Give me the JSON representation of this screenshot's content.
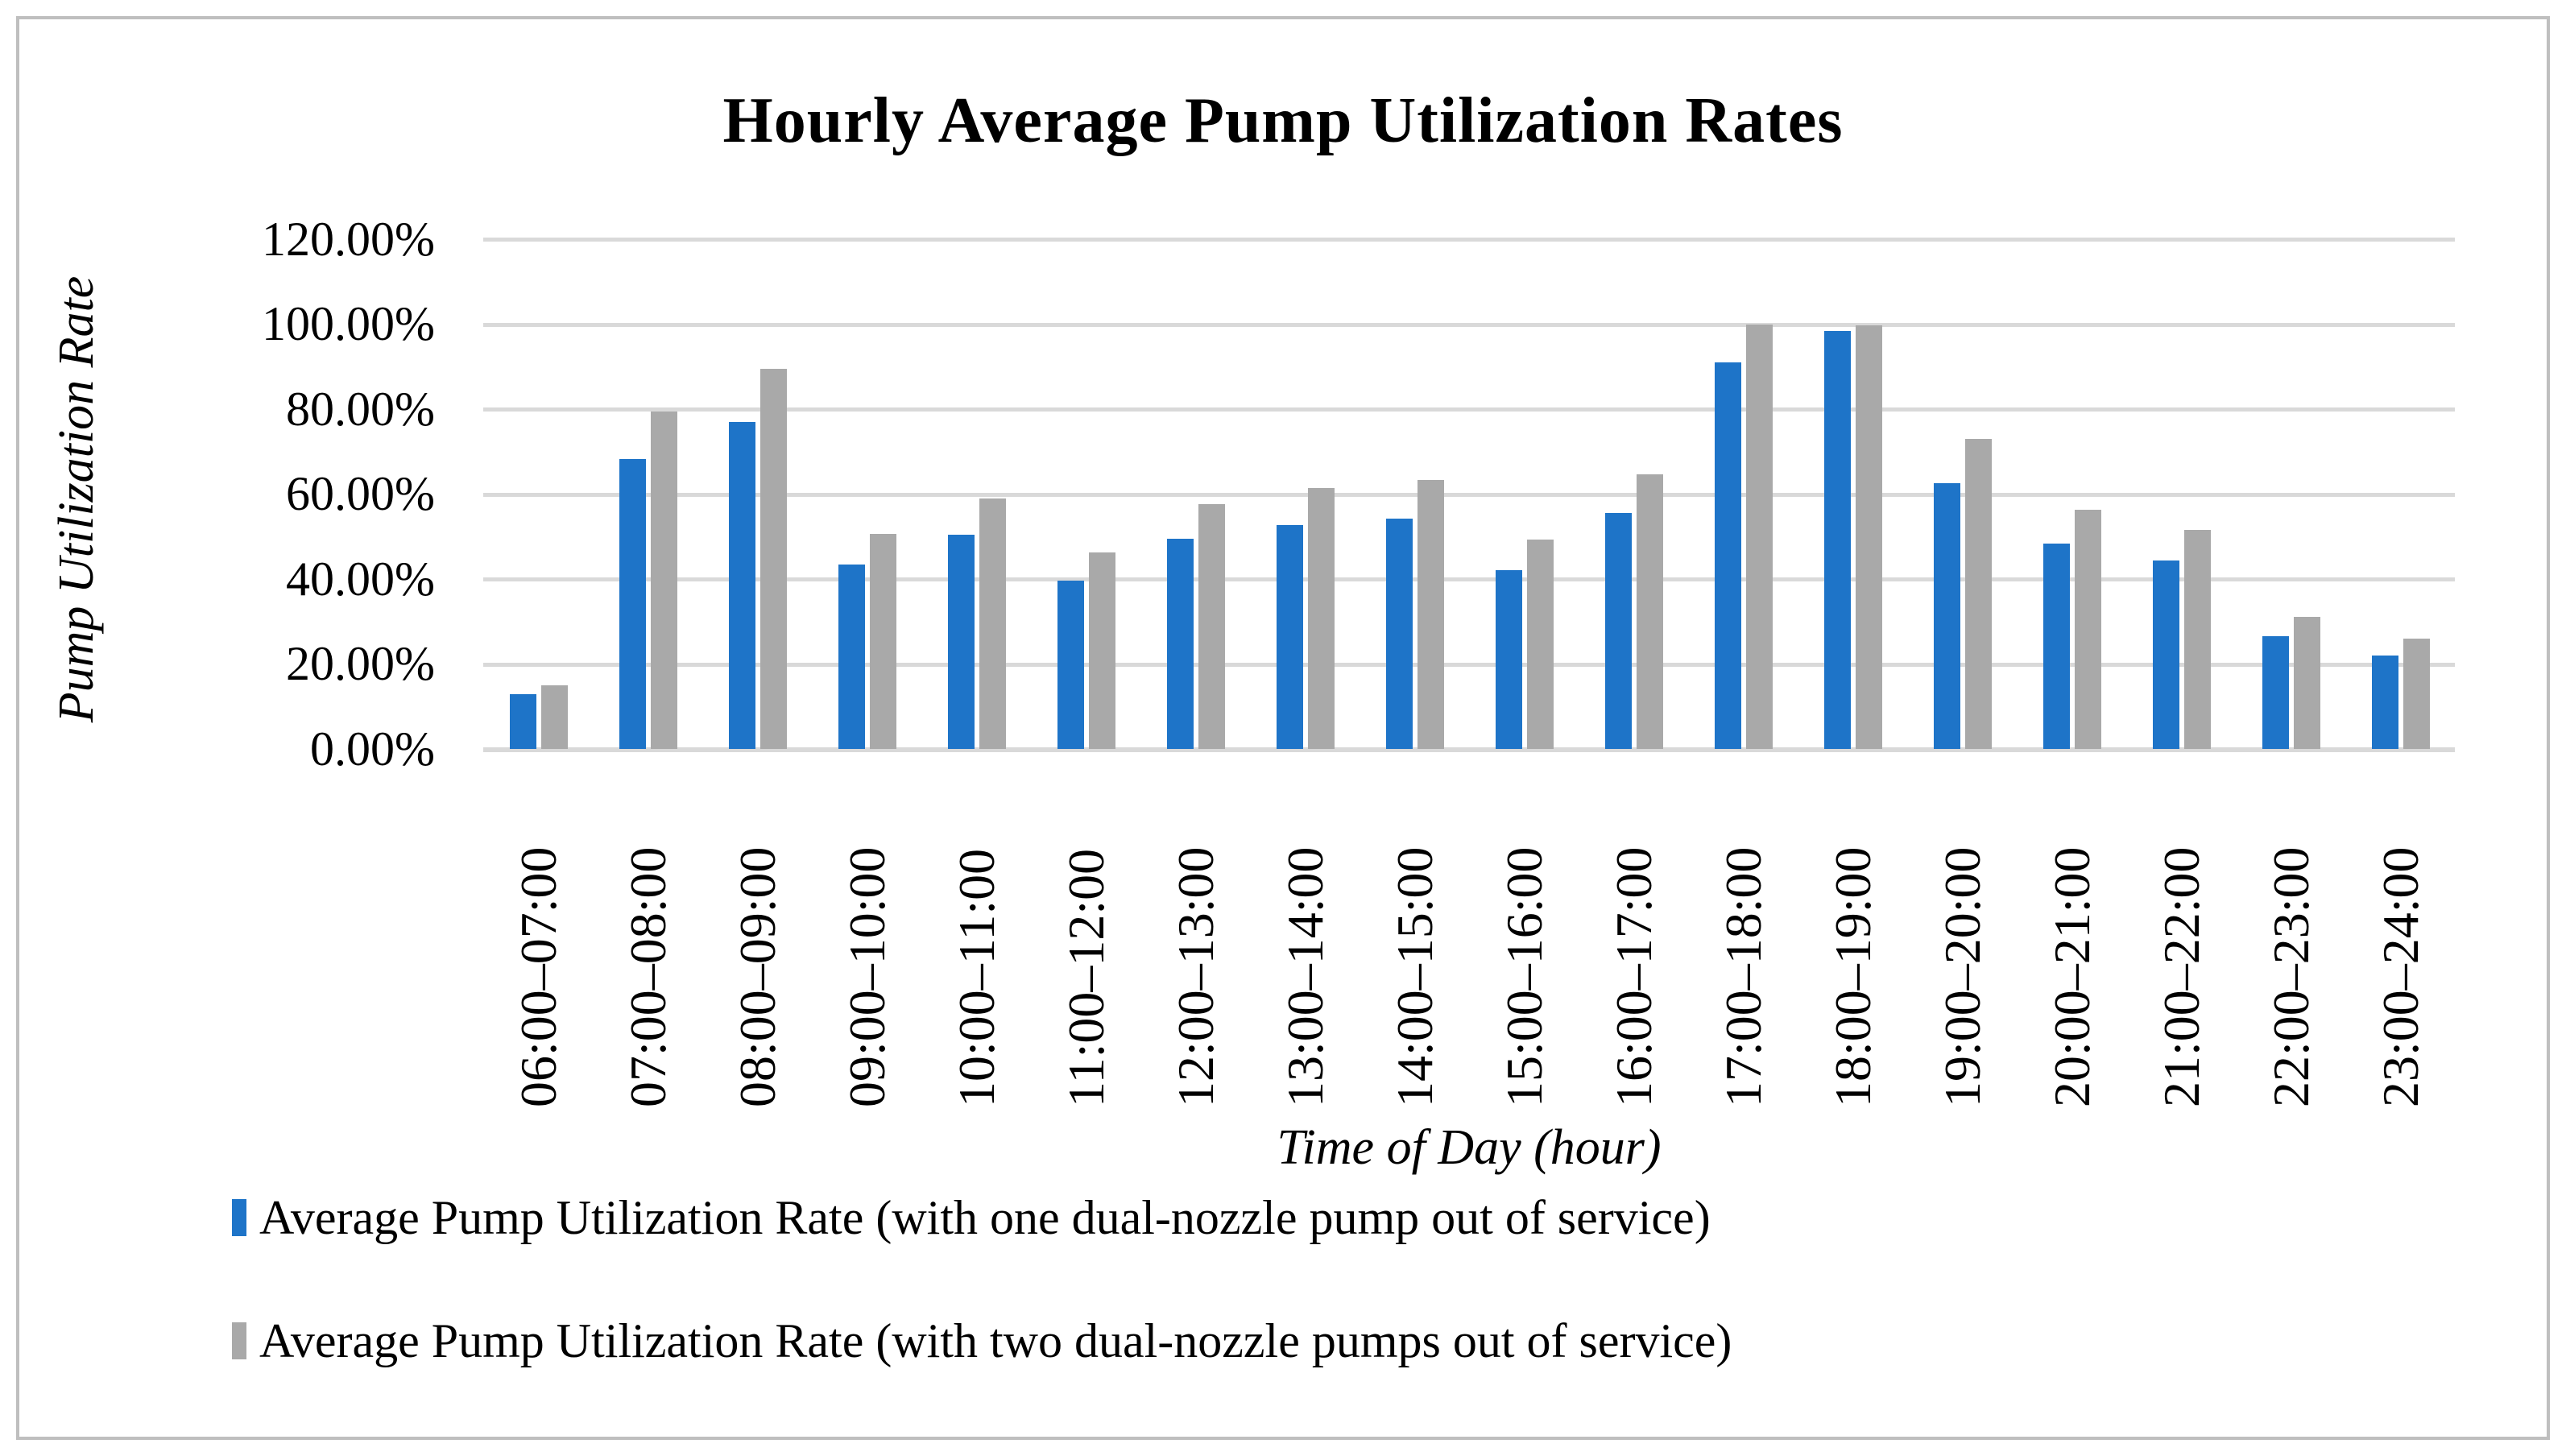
{
  "frame": {
    "border_color": "#bfbfbf"
  },
  "title": "Hourly Average Pump Utilization Rates",
  "y_axis": {
    "title": "Pump Utilization Rate",
    "tick_labels": [
      "120.00%",
      "100.00%",
      "80.00%",
      "60.00%",
      "40.00%",
      "20.00%",
      "0.00%"
    ],
    "max_pct": 120,
    "step_pct": 20
  },
  "x_axis": {
    "title": "Time of Day (hour)"
  },
  "legend": {
    "items": [
      {
        "label": "Average Pump Utilization Rate (with one dual-nozzle pump out of service)",
        "color": "#1e74c8"
      },
      {
        "label": "Average Pump Utilization Rate (with two dual-nozzle pumps out of service)",
        "color": "#a9a9a9"
      }
    ]
  },
  "colors": {
    "series_one_out": "#1e74c8",
    "series_two_out": "#a9a9a9",
    "gridline": "#d9d9d9",
    "frame_border": "#bfbfbf"
  },
  "chart_data": {
    "type": "bar",
    "title": "Hourly Average Pump Utilization Rates",
    "xlabel": "Time of Day (hour)",
    "ylabel": "Pump Utilization Rate",
    "ylim": [
      0,
      120
    ],
    "y_tick_step": 20,
    "y_tick_format": "0.00%",
    "grid": true,
    "legend_position": "bottom-left",
    "categories": [
      "06:00–07:00",
      "07:00–08:00",
      "08:00–09:00",
      "09:00–10:00",
      "10:00–11:00",
      "11:00–12:00",
      "12:00–13:00",
      "13:00–14:00",
      "14:00–15:00",
      "15:00–16:00",
      "16:00–17:00",
      "17:00–18:00",
      "18:00–19:00",
      "19:00–20:00",
      "20:00–21:00",
      "21:00–22:00",
      "22:00–23:00",
      "23:00–24:00"
    ],
    "series": [
      {
        "name": "Average Pump Utilization Rate (with one dual-nozzle pump out of service)",
        "color": "#1e74c8",
        "values": [
          12.8,
          68.2,
          77.0,
          43.4,
          50.4,
          39.6,
          49.4,
          52.7,
          54.2,
          42.1,
          55.5,
          91.0,
          98.4,
          62.6,
          48.3,
          44.3,
          26.6,
          21.9
        ]
      },
      {
        "name": "Average Pump Utilization Rate (with two dual-nozzle pumps out of service)",
        "color": "#a9a9a9",
        "values": [
          14.9,
          79.5,
          89.5,
          50.6,
          59.0,
          46.2,
          57.6,
          61.5,
          63.4,
          49.2,
          64.6,
          100.0,
          99.8,
          73.0,
          56.4,
          51.6,
          31.0,
          25.9
        ]
      }
    ]
  }
}
